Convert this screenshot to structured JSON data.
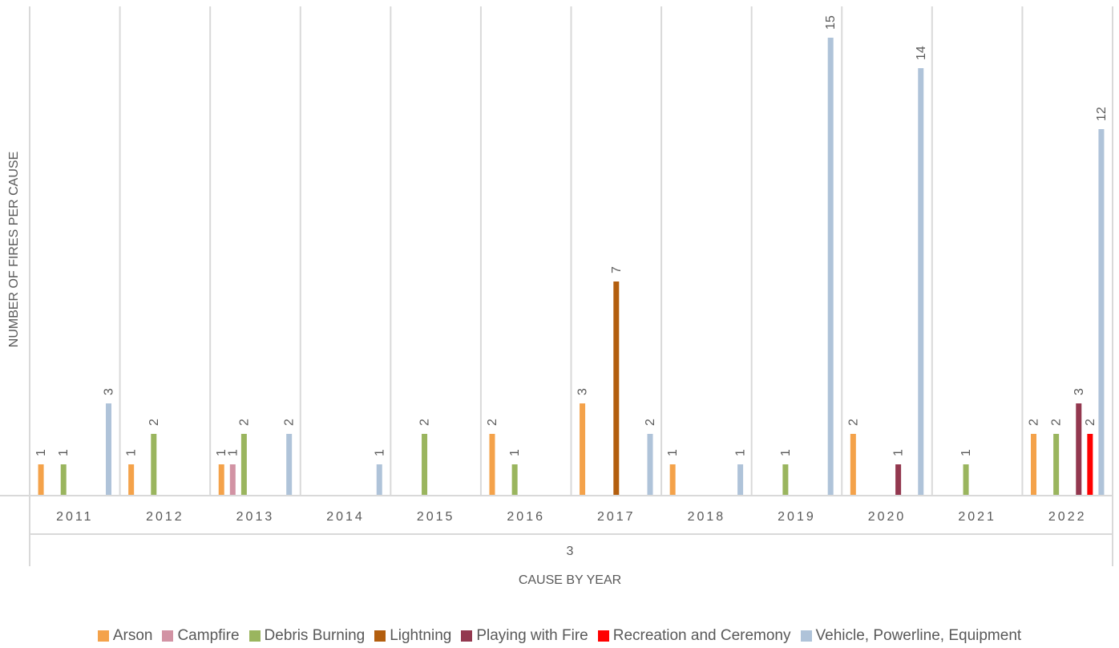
{
  "chart_data": {
    "type": "bar",
    "ylabel": "NUMBER OF FIRES PER CAUSE",
    "xlabel": "CAUSE BY YEAR",
    "group_label": "3",
    "categories": [
      "2011",
      "2012",
      "2013",
      "2014",
      "2015",
      "2016",
      "2017",
      "2018",
      "2019",
      "2020",
      "2021",
      "2022"
    ],
    "ylim": [
      0,
      16
    ],
    "grid": false,
    "legend_position": "bottom",
    "series": [
      {
        "name": "Arson",
        "color": "#F4A24A",
        "values": [
          1,
          1,
          1,
          null,
          null,
          2,
          3,
          1,
          null,
          2,
          null,
          2
        ]
      },
      {
        "name": "Campfire",
        "color": "#D293A4",
        "values": [
          null,
          null,
          1,
          null,
          null,
          null,
          null,
          null,
          null,
          null,
          null,
          null
        ]
      },
      {
        "name": "Debris Burning",
        "color": "#9AB55E",
        "values": [
          1,
          2,
          2,
          null,
          2,
          1,
          null,
          null,
          1,
          null,
          1,
          2
        ]
      },
      {
        "name": "Lightning",
        "color": "#B35E0E",
        "values": [
          null,
          null,
          null,
          null,
          null,
          null,
          7,
          null,
          null,
          null,
          null,
          null
        ]
      },
      {
        "name": "Playing with Fire",
        "color": "#93384F",
        "values": [
          null,
          null,
          null,
          null,
          null,
          null,
          null,
          null,
          null,
          1,
          null,
          3
        ]
      },
      {
        "name": "Recreation and Ceremony",
        "color": "#FF0000",
        "values": [
          null,
          null,
          null,
          null,
          null,
          null,
          null,
          null,
          null,
          null,
          null,
          2
        ]
      },
      {
        "name": "Vehicle, Powerline, Equipment",
        "color": "#AFC3D9",
        "values": [
          3,
          null,
          2,
          1,
          null,
          null,
          2,
          1,
          15,
          14,
          null,
          12
        ]
      }
    ]
  }
}
